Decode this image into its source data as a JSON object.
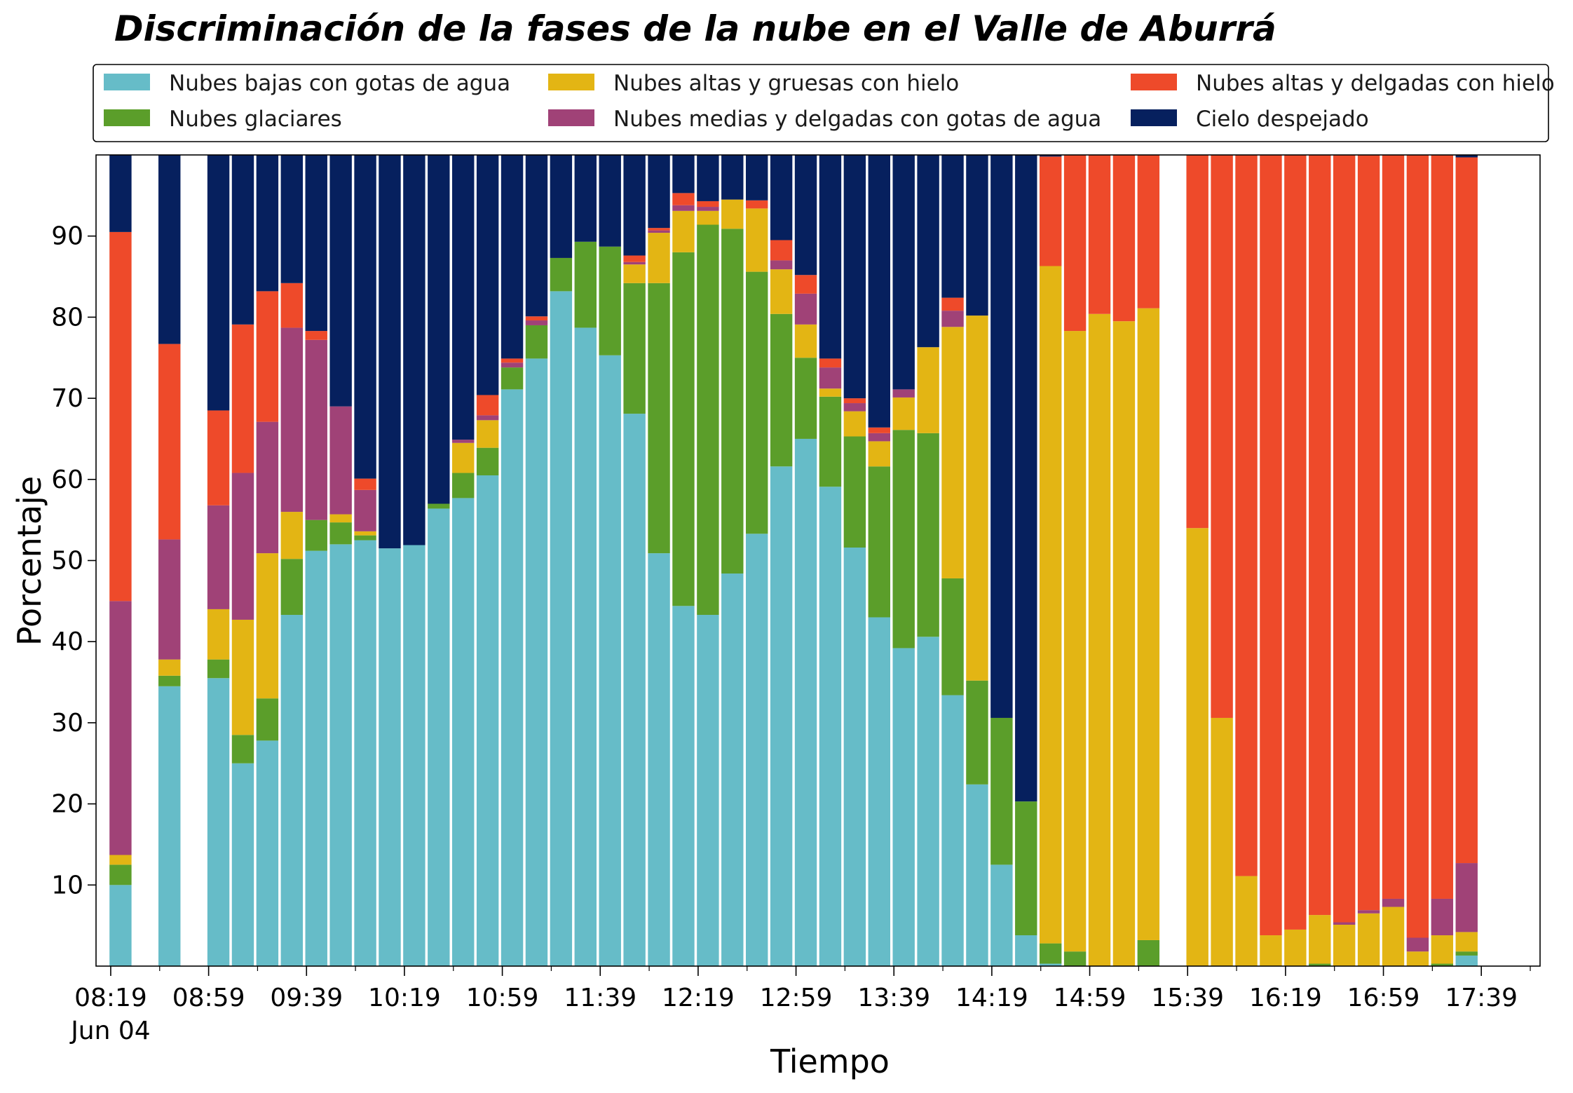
{
  "chart_data": {
    "type": "bar",
    "stacked": true,
    "title": "Discriminación de la fases de la nube en el Valle de Aburrá",
    "xlabel": "Tiempo",
    "ylabel": "Porcentaje",
    "ylim": [
      0,
      100
    ],
    "y_ticks": [
      "10",
      "20",
      "30",
      "40",
      "50",
      "60",
      "70",
      "80",
      "90"
    ],
    "x_ticks": [
      {
        "label": "08:19",
        "sub": "Jun 04",
        "t": 0
      },
      {
        "label": "08:59",
        "t": 40
      },
      {
        "label": "09:39",
        "t": 80
      },
      {
        "label": "10:19",
        "t": 120
      },
      {
        "label": "10:59",
        "t": 160
      },
      {
        "label": "11:39",
        "t": 200
      },
      {
        "label": "12:19",
        "t": 240
      },
      {
        "label": "12:59",
        "t": 280
      },
      {
        "label": "13:39",
        "t": 320
      },
      {
        "label": "14:19",
        "t": 360
      },
      {
        "label": "14:59",
        "t": 400
      },
      {
        "label": "15:39",
        "t": 440
      },
      {
        "label": "16:19",
        "t": 480
      },
      {
        "label": "16:59",
        "t": 520
      },
      {
        "label": "17:39",
        "t": 560
      }
    ],
    "grid": false,
    "legend_placement": "top",
    "series": [
      {
        "name": "Nubes bajas con gotas de agua",
        "color": "#66BCC8"
      },
      {
        "name": "Nubes glaciares",
        "color": "#5B9E2A"
      },
      {
        "name": "Nubes altas y gruesas con hielo",
        "color": "#E3B514"
      },
      {
        "name": "Nubes medias y delgadas con gotas de agua",
        "color": "#A04277"
      },
      {
        "name": "Nubes altas y delgadas con hielo",
        "color": "#EE4A2A"
      },
      {
        "name": "Cielo despejado",
        "color": "#06205E"
      }
    ],
    "bars": [
      {
        "t": 4,
        "values": [
          10.0,
          2.5,
          1.2,
          31.3,
          45.5,
          9.5
        ]
      },
      {
        "t": 24,
        "values": [
          34.5,
          1.3,
          2.0,
          14.8,
          24.1,
          23.3
        ]
      },
      {
        "t": 44,
        "values": [
          35.5,
          2.3,
          6.2,
          12.8,
          11.7,
          31.5
        ]
      },
      {
        "t": 54,
        "values": [
          25.0,
          3.5,
          14.2,
          18.1,
          18.3,
          20.9
        ]
      },
      {
        "t": 64,
        "values": [
          27.8,
          5.2,
          17.9,
          16.2,
          16.1,
          16.8
        ]
      },
      {
        "t": 74,
        "values": [
          43.3,
          6.9,
          5.8,
          22.7,
          5.5,
          15.8
        ]
      },
      {
        "t": 84,
        "values": [
          51.2,
          3.8,
          0.0,
          22.2,
          1.1,
          21.7
        ]
      },
      {
        "t": 94,
        "values": [
          52.0,
          2.7,
          1.0,
          13.3,
          0.0,
          31.0
        ]
      },
      {
        "t": 104,
        "values": [
          52.5,
          0.6,
          0.5,
          5.1,
          1.4,
          39.9
        ]
      },
      {
        "t": 114,
        "values": [
          51.5,
          0.0,
          0.0,
          0.0,
          0.0,
          48.5
        ]
      },
      {
        "t": 124,
        "values": [
          51.9,
          0.0,
          0.0,
          0.0,
          0.0,
          48.1
        ]
      },
      {
        "t": 134,
        "values": [
          56.4,
          0.6,
          0.0,
          0.0,
          0.0,
          43.0
        ]
      },
      {
        "t": 144,
        "values": [
          57.7,
          3.1,
          3.7,
          0.4,
          0.0,
          35.1
        ]
      },
      {
        "t": 154,
        "values": [
          60.5,
          3.4,
          3.4,
          0.6,
          2.5,
          29.6
        ]
      },
      {
        "t": 164,
        "values": [
          71.1,
          2.7,
          0.0,
          0.6,
          0.5,
          25.1
        ]
      },
      {
        "t": 174,
        "values": [
          74.9,
          4.1,
          0.0,
          0.6,
          0.5,
          19.9
        ]
      },
      {
        "t": 184,
        "values": [
          83.2,
          4.1,
          0.0,
          0.0,
          0.0,
          12.7
        ]
      },
      {
        "t": 194,
        "values": [
          78.7,
          10.6,
          0.0,
          0.0,
          0.0,
          10.7
        ]
      },
      {
        "t": 204,
        "values": [
          75.3,
          13.4,
          0.0,
          0.0,
          0.0,
          11.3
        ]
      },
      {
        "t": 214,
        "values": [
          68.1,
          16.1,
          2.3,
          0.3,
          0.8,
          12.4
        ]
      },
      {
        "t": 224,
        "values": [
          50.9,
          33.3,
          6.2,
          0.3,
          0.3,
          9.0
        ]
      },
      {
        "t": 234,
        "values": [
          44.4,
          43.6,
          5.1,
          0.7,
          1.5,
          4.7
        ]
      },
      {
        "t": 244,
        "values": [
          43.3,
          48.1,
          1.7,
          0.5,
          0.7,
          5.7
        ]
      },
      {
        "t": 254,
        "values": [
          48.4,
          42.5,
          3.6,
          0.0,
          0.0,
          5.5
        ]
      },
      {
        "t": 264,
        "values": [
          53.3,
          32.3,
          7.8,
          0.0,
          1.0,
          5.6
        ]
      },
      {
        "t": 274,
        "values": [
          61.6,
          18.8,
          5.5,
          1.1,
          2.5,
          10.5
        ]
      },
      {
        "t": 284,
        "values": [
          65.0,
          10.0,
          4.1,
          3.8,
          2.3,
          14.8
        ]
      },
      {
        "t": 294,
        "values": [
          59.1,
          11.1,
          1.0,
          2.6,
          1.1,
          25.1
        ]
      },
      {
        "t": 304,
        "values": [
          51.6,
          13.7,
          3.1,
          1.0,
          0.6,
          30.0
        ]
      },
      {
        "t": 314,
        "values": [
          43.0,
          18.6,
          3.1,
          1.0,
          0.7,
          33.6
        ]
      },
      {
        "t": 324,
        "values": [
          39.2,
          26.9,
          4.0,
          1.0,
          0.0,
          28.9
        ]
      },
      {
        "t": 334,
        "values": [
          40.6,
          25.1,
          10.6,
          0.0,
          0.0,
          23.7
        ]
      },
      {
        "t": 344,
        "values": [
          33.4,
          14.4,
          31.0,
          2.0,
          1.6,
          17.6
        ]
      },
      {
        "t": 354,
        "values": [
          22.4,
          12.8,
          45.0,
          0.0,
          0.0,
          19.8
        ]
      },
      {
        "t": 364,
        "values": [
          12.5,
          18.1,
          0.0,
          0.0,
          0.0,
          69.4
        ]
      },
      {
        "t": 374,
        "values": [
          3.8,
          16.5,
          0.0,
          0.0,
          0.0,
          79.7
        ]
      },
      {
        "t": 384,
        "values": [
          0.3,
          2.5,
          83.5,
          0.0,
          13.5,
          0.2
        ]
      },
      {
        "t": 394,
        "values": [
          0.0,
          1.8,
          76.5,
          0.0,
          21.7,
          0.0
        ]
      },
      {
        "t": 404,
        "values": [
          0.0,
          0.0,
          80.4,
          0.0,
          19.6,
          0.0
        ]
      },
      {
        "t": 414,
        "values": [
          0.0,
          0.0,
          79.5,
          0.0,
          20.5,
          0.0
        ]
      },
      {
        "t": 424,
        "values": [
          0.0,
          3.2,
          77.9,
          0.0,
          18.9,
          0.0
        ]
      },
      {
        "t": 444,
        "values": [
          0.0,
          0.0,
          54.0,
          0.0,
          46.0,
          0.0
        ]
      },
      {
        "t": 454,
        "values": [
          0.0,
          0.0,
          30.6,
          0.0,
          69.4,
          0.0
        ]
      },
      {
        "t": 464,
        "values": [
          0.0,
          0.0,
          11.1,
          0.0,
          88.9,
          0.0
        ]
      },
      {
        "t": 474,
        "values": [
          0.0,
          0.0,
          3.8,
          0.0,
          96.2,
          0.0
        ]
      },
      {
        "t": 484,
        "values": [
          0.0,
          0.0,
          4.5,
          0.0,
          95.5,
          0.0
        ]
      },
      {
        "t": 494,
        "values": [
          0.0,
          0.3,
          6.0,
          0.0,
          93.7,
          0.0
        ]
      },
      {
        "t": 504,
        "values": [
          0.0,
          0.0,
          5.1,
          0.3,
          94.6,
          0.0
        ]
      },
      {
        "t": 514,
        "values": [
          0.0,
          0.0,
          6.5,
          0.4,
          93.1,
          0.0
        ]
      },
      {
        "t": 524,
        "values": [
          0.0,
          0.0,
          7.3,
          1.0,
          91.7,
          0.0
        ]
      },
      {
        "t": 534,
        "values": [
          0.0,
          0.0,
          1.8,
          1.7,
          96.5,
          0.0
        ]
      },
      {
        "t": 544,
        "values": [
          0.0,
          0.3,
          3.5,
          4.5,
          91.7,
          0.0
        ]
      },
      {
        "t": 554,
        "values": [
          1.3,
          0.5,
          2.4,
          8.5,
          87.0,
          0.3
        ]
      }
    ]
  }
}
